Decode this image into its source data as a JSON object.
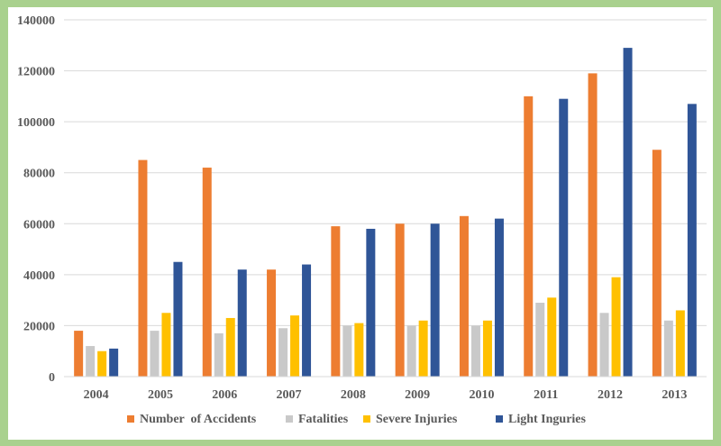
{
  "chart_data": {
    "type": "bar",
    "title": "",
    "xlabel": "",
    "ylabel": "",
    "categories": [
      "2004",
      "2005",
      "2006",
      "2007",
      "2008",
      "2009",
      "2010",
      "2011",
      "2012",
      "2013"
    ],
    "ylim": [
      0,
      140000
    ],
    "yticks": [
      0,
      20000,
      40000,
      60000,
      80000,
      100000,
      120000,
      140000
    ],
    "grid": true,
    "legend_position": "bottom",
    "series": [
      {
        "name": "Number  of Accidents",
        "color": "#ed7d31",
        "values": [
          18000,
          85000,
          82000,
          42000,
          59000,
          60000,
          63000,
          110000,
          119000,
          89000
        ]
      },
      {
        "name": "Fatalities",
        "color": "#c9c9c9",
        "values": [
          12000,
          18000,
          17000,
          19000,
          20000,
          20000,
          20000,
          29000,
          25000,
          22000
        ]
      },
      {
        "name": "Severe Injuries",
        "color": "#ffc000",
        "values": [
          10000,
          25000,
          23000,
          24000,
          21000,
          22000,
          22000,
          31000,
          39000,
          26000
        ]
      },
      {
        "name": "Light Inguries",
        "color": "#2f5597",
        "values": [
          11000,
          45000,
          42000,
          44000,
          58000,
          60000,
          62000,
          109000,
          129000,
          107000
        ]
      }
    ]
  }
}
